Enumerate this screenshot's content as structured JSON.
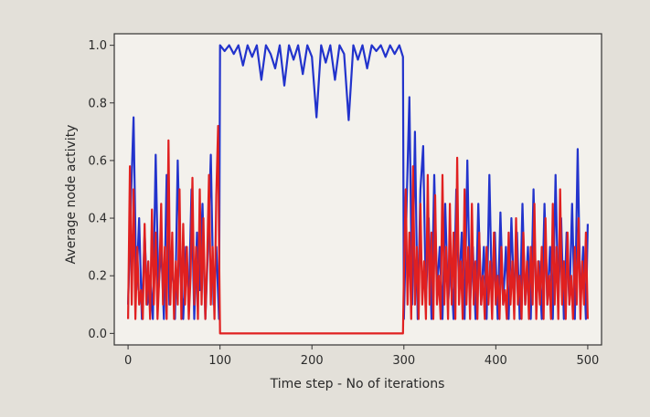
{
  "chart_data": {
    "type": "line",
    "title": "",
    "xlabel": "Time step - No of iterations",
    "ylabel": "Average node activity",
    "xlim": [
      -15,
      515
    ],
    "ylim": [
      -0.04,
      1.04
    ],
    "x_ticks": [
      0,
      100,
      200,
      300,
      400,
      500
    ],
    "x_tick_labels": [
      "0",
      "100",
      "200",
      "300",
      "400",
      "500"
    ],
    "y_ticks": [
      0.0,
      0.2,
      0.4,
      0.6,
      0.8,
      1.0
    ],
    "y_tick_labels": [
      "0.0",
      "0.2",
      "0.4",
      "0.6",
      "0.8",
      "1.0"
    ],
    "grid": false,
    "series": [
      {
        "color": "#2233cc",
        "points": [
          [
            0,
            0.1
          ],
          [
            3,
            0.45
          ],
          [
            6,
            0.75
          ],
          [
            9,
            0.15
          ],
          [
            12,
            0.4
          ],
          [
            15,
            0.05
          ],
          [
            18,
            0.35
          ],
          [
            21,
            0.1
          ],
          [
            24,
            0.2
          ],
          [
            27,
            0.05
          ],
          [
            30,
            0.62
          ],
          [
            33,
            0.15
          ],
          [
            36,
            0.3
          ],
          [
            39,
            0.05
          ],
          [
            42,
            0.55
          ],
          [
            45,
            0.1
          ],
          [
            48,
            0.25
          ],
          [
            51,
            0.05
          ],
          [
            54,
            0.6
          ],
          [
            57,
            0.2
          ],
          [
            60,
            0.05
          ],
          [
            63,
            0.3
          ],
          [
            66,
            0.1
          ],
          [
            69,
            0.5
          ],
          [
            72,
            0.05
          ],
          [
            75,
            0.35
          ],
          [
            78,
            0.15
          ],
          [
            81,
            0.45
          ],
          [
            84,
            0.05
          ],
          [
            87,
            0.3
          ],
          [
            90,
            0.62
          ],
          [
            93,
            0.1
          ],
          [
            96,
            0.3
          ],
          [
            99,
            0.05
          ],
          [
            100,
            1.0
          ],
          [
            105,
            0.98
          ],
          [
            110,
            1.0
          ],
          [
            115,
            0.97
          ],
          [
            120,
            1.0
          ],
          [
            125,
            0.93
          ],
          [
            130,
            1.0
          ],
          [
            135,
            0.96
          ],
          [
            140,
            1.0
          ],
          [
            145,
            0.88
          ],
          [
            150,
            1.0
          ],
          [
            155,
            0.97
          ],
          [
            160,
            0.92
          ],
          [
            165,
            1.0
          ],
          [
            170,
            0.86
          ],
          [
            175,
            1.0
          ],
          [
            180,
            0.95
          ],
          [
            185,
            1.0
          ],
          [
            190,
            0.9
          ],
          [
            195,
            1.0
          ],
          [
            200,
            0.96
          ],
          [
            205,
            0.75
          ],
          [
            210,
            1.0
          ],
          [
            215,
            0.94
          ],
          [
            220,
            1.0
          ],
          [
            225,
            0.88
          ],
          [
            230,
            1.0
          ],
          [
            235,
            0.97
          ],
          [
            240,
            0.74
          ],
          [
            245,
            1.0
          ],
          [
            250,
            0.95
          ],
          [
            255,
            1.0
          ],
          [
            260,
            0.92
          ],
          [
            265,
            1.0
          ],
          [
            270,
            0.98
          ],
          [
            275,
            1.0
          ],
          [
            280,
            0.96
          ],
          [
            285,
            1.0
          ],
          [
            290,
            0.97
          ],
          [
            295,
            1.0
          ],
          [
            299,
            0.96
          ],
          [
            300,
            0.05
          ],
          [
            303,
            0.45
          ],
          [
            306,
            0.82
          ],
          [
            309,
            0.1
          ],
          [
            312,
            0.7
          ],
          [
            315,
            0.05
          ],
          [
            318,
            0.5
          ],
          [
            321,
            0.65
          ],
          [
            324,
            0.1
          ],
          [
            327,
            0.4
          ],
          [
            330,
            0.05
          ],
          [
            333,
            0.55
          ],
          [
            336,
            0.15
          ],
          [
            339,
            0.3
          ],
          [
            342,
            0.05
          ],
          [
            345,
            0.45
          ],
          [
            348,
            0.1
          ],
          [
            351,
            0.25
          ],
          [
            354,
            0.05
          ],
          [
            357,
            0.5
          ],
          [
            360,
            0.15
          ],
          [
            363,
            0.35
          ],
          [
            366,
            0.05
          ],
          [
            369,
            0.6
          ],
          [
            372,
            0.1
          ],
          [
            375,
            0.3
          ],
          [
            378,
            0.05
          ],
          [
            381,
            0.45
          ],
          [
            384,
            0.1
          ],
          [
            387,
            0.3
          ],
          [
            390,
            0.05
          ],
          [
            393,
            0.55
          ],
          [
            396,
            0.1
          ],
          [
            399,
            0.35
          ],
          [
            402,
            0.05
          ],
          [
            405,
            0.42
          ],
          [
            408,
            0.1
          ],
          [
            411,
            0.3
          ],
          [
            414,
            0.05
          ],
          [
            417,
            0.4
          ],
          [
            420,
            0.1
          ],
          [
            423,
            0.35
          ],
          [
            426,
            0.05
          ],
          [
            429,
            0.45
          ],
          [
            432,
            0.1
          ],
          [
            435,
            0.3
          ],
          [
            438,
            0.05
          ],
          [
            441,
            0.5
          ],
          [
            444,
            0.1
          ],
          [
            447,
            0.25
          ],
          [
            450,
            0.05
          ],
          [
            453,
            0.45
          ],
          [
            456,
            0.1
          ],
          [
            459,
            0.3
          ],
          [
            462,
            0.05
          ],
          [
            465,
            0.55
          ],
          [
            468,
            0.1
          ],
          [
            471,
            0.4
          ],
          [
            474,
            0.05
          ],
          [
            477,
            0.35
          ],
          [
            480,
            0.1
          ],
          [
            483,
            0.45
          ],
          [
            486,
            0.05
          ],
          [
            489,
            0.64
          ],
          [
            492,
            0.1
          ],
          [
            495,
            0.3
          ],
          [
            498,
            0.05
          ],
          [
            500,
            0.38
          ]
        ]
      },
      {
        "color": "#e02020",
        "points": [
          [
            0,
            0.05
          ],
          [
            2,
            0.58
          ],
          [
            4,
            0.1
          ],
          [
            6,
            0.5
          ],
          [
            8,
            0.05
          ],
          [
            10,
            0.3
          ],
          [
            12,
            0.1
          ],
          [
            14,
            0.15
          ],
          [
            16,
            0.05
          ],
          [
            18,
            0.38
          ],
          [
            20,
            0.1
          ],
          [
            22,
            0.25
          ],
          [
            24,
            0.05
          ],
          [
            26,
            0.43
          ],
          [
            28,
            0.1
          ],
          [
            30,
            0.35
          ],
          [
            32,
            0.05
          ],
          [
            34,
            0.2
          ],
          [
            36,
            0.45
          ],
          [
            38,
            0.1
          ],
          [
            40,
            0.3
          ],
          [
            42,
            0.05
          ],
          [
            44,
            0.67
          ],
          [
            46,
            0.1
          ],
          [
            48,
            0.35
          ],
          [
            50,
            0.05
          ],
          [
            52,
            0.25
          ],
          [
            54,
            0.1
          ],
          [
            56,
            0.5
          ],
          [
            58,
            0.05
          ],
          [
            60,
            0.38
          ],
          [
            62,
            0.1
          ],
          [
            64,
            0.3
          ],
          [
            66,
            0.05
          ],
          [
            68,
            0.2
          ],
          [
            70,
            0.54
          ],
          [
            72,
            0.1
          ],
          [
            74,
            0.3
          ],
          [
            76,
            0.05
          ],
          [
            78,
            0.5
          ],
          [
            80,
            0.1
          ],
          [
            82,
            0.4
          ],
          [
            84,
            0.05
          ],
          [
            86,
            0.25
          ],
          [
            88,
            0.55
          ],
          [
            90,
            0.1
          ],
          [
            92,
            0.3
          ],
          [
            94,
            0.05
          ],
          [
            96,
            0.48
          ],
          [
            98,
            0.72
          ],
          [
            99,
            0.3
          ],
          [
            100,
            0.0
          ],
          [
            299,
            0.0
          ],
          [
            300,
            0.2
          ],
          [
            302,
            0.5
          ],
          [
            304,
            0.1
          ],
          [
            306,
            0.35
          ],
          [
            308,
            0.05
          ],
          [
            310,
            0.58
          ],
          [
            312,
            0.1
          ],
          [
            314,
            0.3
          ],
          [
            316,
            0.05
          ],
          [
            318,
            0.45
          ],
          [
            320,
            0.1
          ],
          [
            322,
            0.25
          ],
          [
            324,
            0.05
          ],
          [
            326,
            0.55
          ],
          [
            328,
            0.1
          ],
          [
            330,
            0.35
          ],
          [
            332,
            0.05
          ],
          [
            334,
            0.48
          ],
          [
            336,
            0.1
          ],
          [
            338,
            0.2
          ],
          [
            340,
            0.05
          ],
          [
            342,
            0.55
          ],
          [
            344,
            0.1
          ],
          [
            346,
            0.3
          ],
          [
            348,
            0.05
          ],
          [
            350,
            0.45
          ],
          [
            352,
            0.1
          ],
          [
            354,
            0.35
          ],
          [
            356,
            0.05
          ],
          [
            358,
            0.61
          ],
          [
            360,
            0.1
          ],
          [
            362,
            0.25
          ],
          [
            364,
            0.05
          ],
          [
            366,
            0.5
          ],
          [
            368,
            0.1
          ],
          [
            370,
            0.3
          ],
          [
            372,
            0.05
          ],
          [
            374,
            0.45
          ],
          [
            376,
            0.1
          ],
          [
            378,
            0.25
          ],
          [
            380,
            0.05
          ],
          [
            382,
            0.35
          ],
          [
            384,
            0.1
          ],
          [
            386,
            0.2
          ],
          [
            388,
            0.05
          ],
          [
            390,
            0.3
          ],
          [
            392,
            0.1
          ],
          [
            394,
            0.25
          ],
          [
            396,
            0.05
          ],
          [
            398,
            0.35
          ],
          [
            400,
            0.1
          ],
          [
            402,
            0.2
          ],
          [
            404,
            0.05
          ],
          [
            406,
            0.3
          ],
          [
            408,
            0.1
          ],
          [
            410,
            0.15
          ],
          [
            412,
            0.05
          ],
          [
            414,
            0.35
          ],
          [
            416,
            0.1
          ],
          [
            418,
            0.25
          ],
          [
            420,
            0.05
          ],
          [
            422,
            0.4
          ],
          [
            424,
            0.1
          ],
          [
            426,
            0.2
          ],
          [
            428,
            0.05
          ],
          [
            430,
            0.35
          ],
          [
            432,
            0.1
          ],
          [
            434,
            0.25
          ],
          [
            436,
            0.05
          ],
          [
            438,
            0.3
          ],
          [
            440,
            0.1
          ],
          [
            442,
            0.45
          ],
          [
            444,
            0.05
          ],
          [
            446,
            0.25
          ],
          [
            448,
            0.1
          ],
          [
            450,
            0.3
          ],
          [
            452,
            0.05
          ],
          [
            454,
            0.4
          ],
          [
            456,
            0.1
          ],
          [
            458,
            0.2
          ],
          [
            460,
            0.05
          ],
          [
            462,
            0.45
          ],
          [
            464,
            0.1
          ],
          [
            466,
            0.3
          ],
          [
            468,
            0.05
          ],
          [
            470,
            0.5
          ],
          [
            472,
            0.1
          ],
          [
            474,
            0.25
          ],
          [
            476,
            0.05
          ],
          [
            478,
            0.35
          ],
          [
            480,
            0.1
          ],
          [
            482,
            0.2
          ],
          [
            484,
            0.05
          ],
          [
            486,
            0.3
          ],
          [
            488,
            0.1
          ],
          [
            490,
            0.4
          ],
          [
            492,
            0.05
          ],
          [
            494,
            0.25
          ],
          [
            496,
            0.1
          ],
          [
            498,
            0.35
          ],
          [
            500,
            0.05
          ]
        ]
      }
    ]
  }
}
